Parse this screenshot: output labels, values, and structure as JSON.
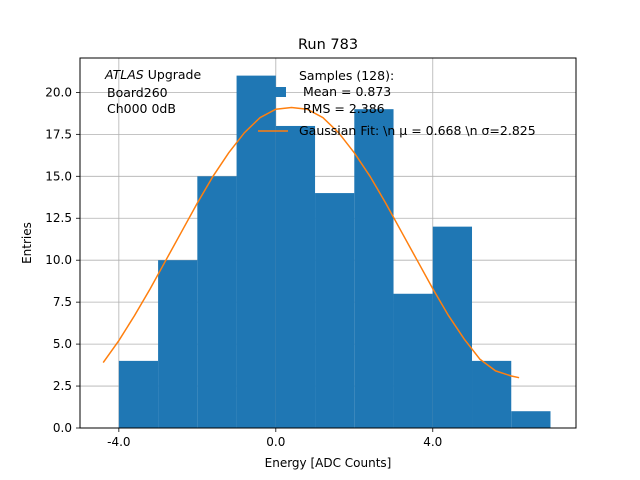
{
  "chart_data": {
    "type": "bar",
    "title": "Run 783",
    "xlabel": "Energy [ADC Counts]",
    "ylabel": "Entries",
    "xlim": [
      -4.99,
      7.65
    ],
    "ylim": [
      0,
      22.05
    ],
    "grid": true,
    "x_ticks": [
      -4.0,
      0.0,
      4.0
    ],
    "x_tick_labels": [
      "-4.0",
      "0.0",
      "4.0"
    ],
    "y_ticks": [
      0,
      2.5,
      5,
      7.5,
      10,
      12.5,
      15,
      17.5,
      20
    ],
    "y_tick_labels": [
      "0.0",
      "2.5",
      "5.0",
      "7.5",
      "10.0",
      "12.5",
      "15.0",
      "17.5",
      "20.0"
    ],
    "histogram": {
      "bin_edges": [
        -4,
        -3,
        -2,
        -1,
        0,
        1,
        2,
        3,
        4,
        5,
        6,
        7
      ],
      "counts": [
        4,
        10,
        15,
        21,
        18,
        14,
        19,
        8,
        12,
        4,
        1
      ],
      "color": "#1f77b4"
    },
    "series": [
      {
        "type": "line",
        "color": "#ff7f0e",
        "x": [
          -4.4,
          -4.0,
          -3.6,
          -3.2,
          -2.8,
          -2.4,
          -2.0,
          -1.6,
          -1.2,
          -0.8,
          -0.4,
          0.0,
          0.4,
          0.8,
          1.2,
          1.6,
          2.0,
          2.4,
          2.8,
          3.2,
          3.6,
          4.0,
          4.4,
          4.8,
          5.2,
          5.6,
          6.0,
          6.2
        ],
        "y": [
          3.9,
          5.2,
          6.7,
          8.3,
          10.0,
          11.7,
          13.4,
          15.0,
          16.4,
          17.6,
          18.5,
          19.0,
          19.1,
          19.0,
          18.5,
          17.6,
          16.4,
          15.0,
          13.4,
          11.7,
          10.0,
          8.3,
          6.7,
          5.3,
          4.1,
          3.4,
          3.1,
          3.0
        ]
      }
    ],
    "annotation": {
      "lines": [
        "ATLAS Upgrade",
        "Board260",
        "Ch000 0dB"
      ],
      "italic_word": "ATLAS"
    },
    "legend": {
      "location": "upper-right",
      "entries": [
        {
          "kind": "patch",
          "color": "#1f77b4",
          "lines": [
            "Samples (128):",
            "Mean = 0.873",
            "RMS = 2.386"
          ]
        },
        {
          "kind": "line",
          "color": "#ff7f0e",
          "label": "Gaussian Fit: \\n μ = 0.668 \\n σ=2.825"
        }
      ]
    }
  }
}
